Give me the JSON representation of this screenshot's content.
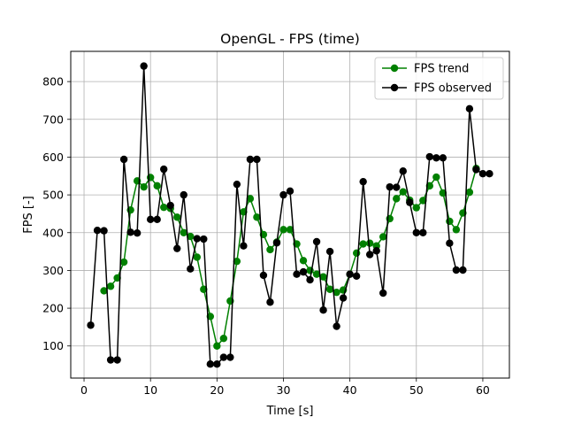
{
  "chart_data": {
    "type": "line",
    "title": "OpenGL - FPS (time)",
    "xlabel": "Time [s]",
    "ylabel": "FPS [-]",
    "xlim": [
      -2,
      64
    ],
    "ylim": [
      15,
      880
    ],
    "xticks": [
      0,
      10,
      20,
      30,
      40,
      50,
      60
    ],
    "yticks": [
      100,
      200,
      300,
      400,
      500,
      600,
      700,
      800
    ],
    "grid": true,
    "legend_position": "upper right",
    "series": [
      {
        "name": "FPS trend",
        "color": "#008000",
        "x": [
          3,
          4,
          5,
          6,
          7,
          8,
          9,
          10,
          11,
          12,
          13,
          14,
          15,
          16,
          17,
          18,
          19,
          20,
          21,
          22,
          23,
          24,
          25,
          26,
          27,
          28,
          29,
          30,
          31,
          32,
          33,
          34,
          35,
          36,
          37,
          38,
          39,
          40,
          41,
          42,
          43,
          44,
          45,
          46,
          47,
          48,
          49,
          50,
          51,
          52,
          53,
          54,
          55,
          56,
          57,
          58,
          59
        ],
        "y": [
          246,
          258,
          280,
          322,
          460,
          537,
          521,
          546,
          524,
          467,
          464,
          441,
          400,
          390,
          335,
          250,
          178,
          100,
          120,
          219,
          324,
          455,
          490,
          441,
          395,
          355,
          375,
          408,
          408,
          370,
          326,
          300,
          290,
          283,
          250,
          242,
          248,
          290,
          346,
          370,
          372,
          365,
          389,
          437,
          490,
          508,
          486,
          466,
          485,
          524,
          547,
          505,
          430,
          408,
          452,
          507,
          570
        ]
      },
      {
        "name": "FPS observed",
        "color": "#000000",
        "x": [
          1,
          2,
          3,
          4,
          5,
          6,
          7,
          8,
          9,
          10,
          11,
          12,
          13,
          14,
          15,
          16,
          17,
          18,
          19,
          20,
          21,
          22,
          23,
          24,
          25,
          26,
          27,
          28,
          29,
          30,
          31,
          32,
          33,
          34,
          35,
          36,
          37,
          38,
          39,
          40,
          41,
          42,
          43,
          44,
          45,
          46,
          47,
          48,
          49,
          50,
          51,
          52,
          53,
          54,
          55,
          56,
          57,
          58,
          59,
          60,
          61
        ],
        "y": [
          155,
          406,
          405,
          63,
          63,
          594,
          401,
          399,
          841,
          435,
          435,
          568,
          472,
          358,
          500,
          304,
          384,
          383,
          52,
          52,
          70,
          70,
          528,
          365,
          594,
          594,
          287,
          216,
          373,
          500,
          510,
          290,
          296,
          275,
          376,
          195,
          350,
          152,
          227,
          290,
          285,
          535,
          342,
          352,
          240,
          521,
          520,
          563,
          480,
          400,
          400,
          601,
          598,
          598,
          372,
          301,
          301,
          728,
          567,
          556,
          556
        ]
      }
    ]
  }
}
